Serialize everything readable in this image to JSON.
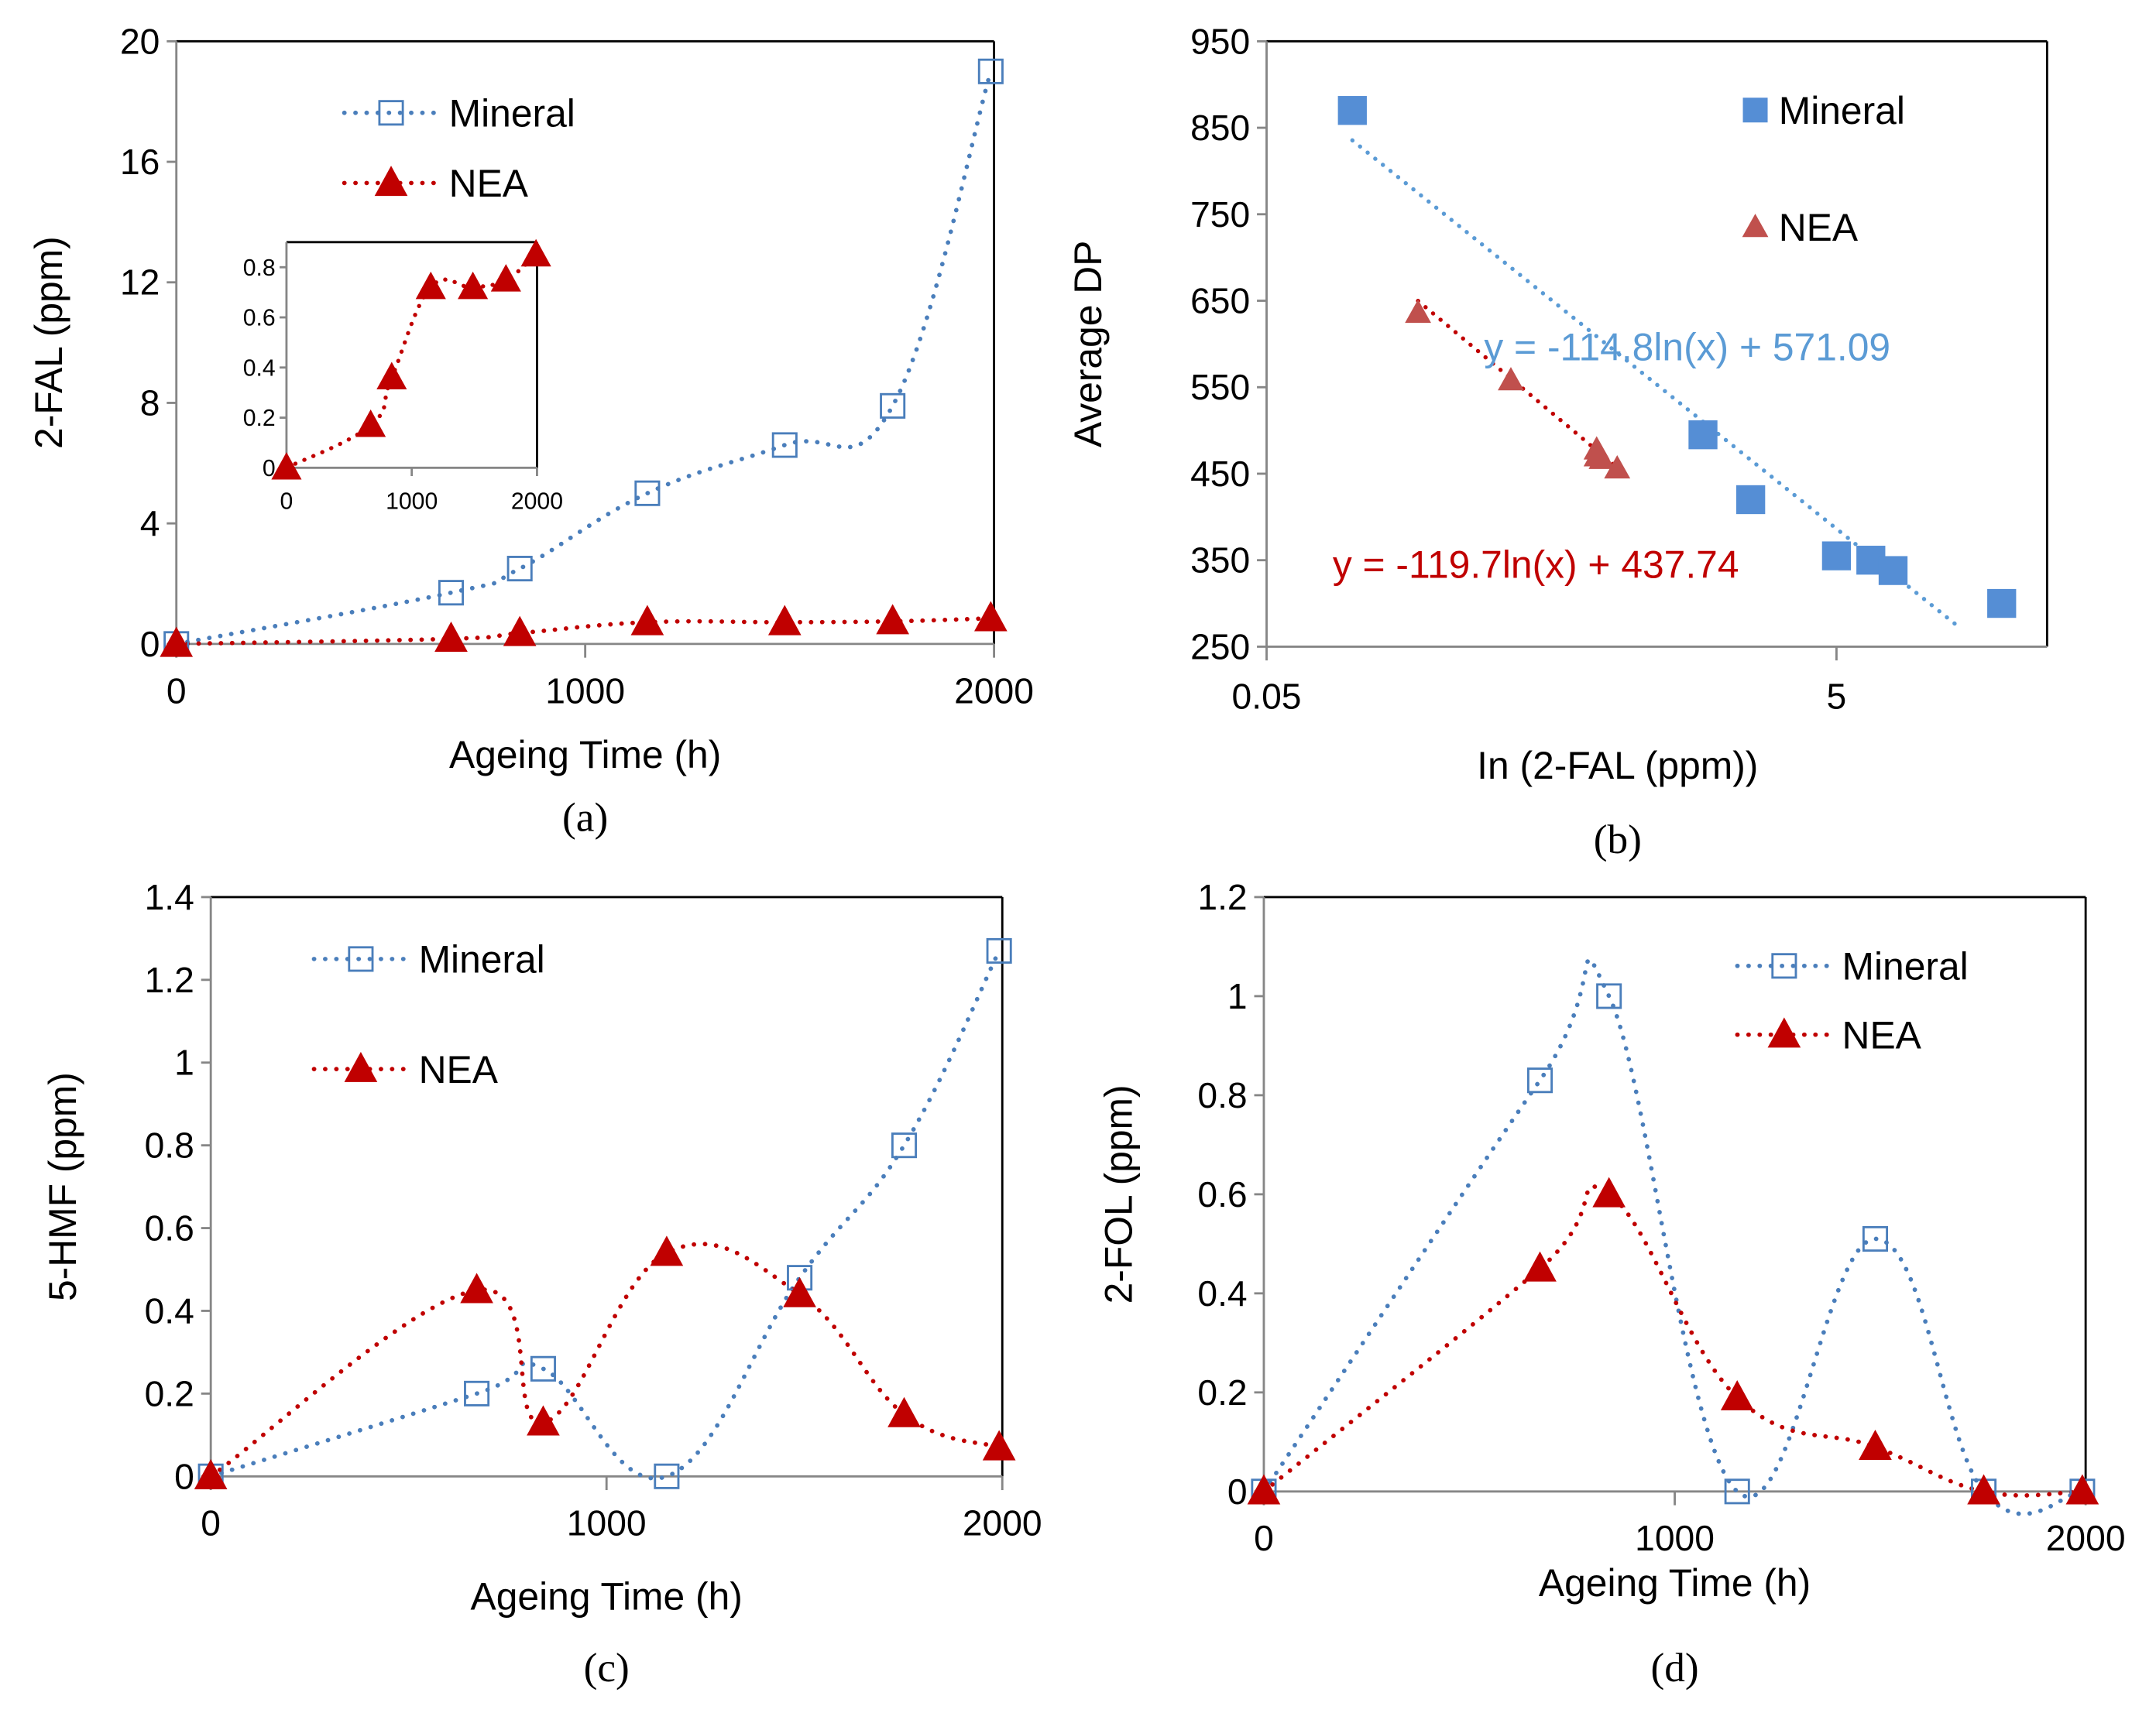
{
  "colors": {
    "mineral_line": "#4A7EBB",
    "nea_line": "#C00000",
    "mineral_scatter": "#558ED5",
    "nea_scatter": "#C0504D",
    "mineral_trend": "#5B9BD5",
    "nea_trend": "#C00000"
  },
  "chart_data": [
    {
      "id": "a",
      "type": "line",
      "panel_label": "(a)",
      "xlabel": "Ageing Time (h)",
      "ylabel": "2-FAL (ppm)",
      "xlim": [
        0,
        2000
      ],
      "ylim": [
        0,
        20
      ],
      "xticks": [
        0,
        1000,
        2000
      ],
      "xtick_labels": [
        "0",
        "1000",
        "2000"
      ],
      "yticks": [
        0,
        4,
        8,
        12,
        16,
        20
      ],
      "ytick_labels": [
        "0",
        "4",
        "8",
        "12",
        "16",
        "20"
      ],
      "legend": [
        "Mineral",
        "NEA"
      ],
      "legend_position": "top-left",
      "grid": false,
      "series": [
        {
          "name": "Mineral",
          "marker": "open-square",
          "line": "dotted-smooth",
          "x": [
            0,
            672,
            840,
            1152,
            1488,
            1752,
            1992
          ],
          "y": [
            0.0,
            1.7,
            2.5,
            5.0,
            6.6,
            7.9,
            19.0
          ]
        },
        {
          "name": "NEA",
          "marker": "filled-triangle",
          "line": "dotted-smooth",
          "x": [
            0,
            672,
            840,
            1152,
            1488,
            1752,
            1992
          ],
          "y": [
            0.0,
            0.17,
            0.36,
            0.72,
            0.72,
            0.75,
            0.85
          ]
        }
      ],
      "inset": {
        "type": "line",
        "xlim": [
          0,
          2000
        ],
        "ylim": [
          0,
          0.9
        ],
        "xticks": [
          0,
          1000,
          2000
        ],
        "xtick_labels": [
          "0",
          "1000",
          "2000"
        ],
        "yticks": [
          0,
          0.2,
          0.4,
          0.6,
          0.8
        ],
        "ytick_labels": [
          "0",
          "0.2",
          "0.4",
          "0.6",
          "0.8"
        ],
        "series": [
          {
            "name": "NEA",
            "marker": "filled-triangle",
            "x": [
              0,
              672,
              840,
              1152,
              1488,
              1752,
              1992
            ],
            "y": [
              0.0,
              0.17,
              0.36,
              0.72,
              0.72,
              0.75,
              0.85
            ]
          }
        ]
      }
    },
    {
      "id": "b",
      "type": "scatter",
      "panel_label": "(b)",
      "xlabel": "In (2-FAL (ppm))",
      "ylabel": "Average DP",
      "xscale": "log",
      "xlim": [
        0.05,
        30
      ],
      "ylim": [
        250,
        950
      ],
      "xticks": [
        0.05,
        5
      ],
      "xtick_labels": [
        "0.05",
        "5"
      ],
      "yticks": [
        250,
        350,
        450,
        550,
        650,
        750,
        850,
        950
      ],
      "ytick_labels": [
        "250",
        "350",
        "450",
        "550",
        "650",
        "750",
        "850",
        "950"
      ],
      "legend": [
        "Mineral",
        "NEA"
      ],
      "legend_position": "top-right",
      "grid": false,
      "series": [
        {
          "name": "Mineral",
          "marker": "filled-square",
          "x": [
            0.1,
            1.7,
            2.5,
            5.0,
            6.6,
            7.9,
            19.0
          ],
          "y": [
            870,
            495,
            420,
            355,
            350,
            338,
            300
          ],
          "trendline": {
            "equation": "y = -114.8ln(x) + 571.09",
            "a": -114.8,
            "b": 571.09,
            "x_range": [
              0.1,
              19.0
            ]
          }
        },
        {
          "name": "NEA",
          "marker": "filled-triangle",
          "x": [
            0.17,
            0.36,
            0.72,
            0.72,
            0.75,
            0.85
          ],
          "y": [
            636,
            558,
            478,
            470,
            467,
            456
          ],
          "trendline": {
            "equation": "y = -119.7ln(x) + 437.74",
            "a": -119.7,
            "b": 437.74,
            "x_range": [
              0.17,
              0.85
            ]
          }
        }
      ]
    },
    {
      "id": "c",
      "type": "line",
      "panel_label": "(c)",
      "xlabel": "Ageing Time (h)",
      "ylabel": "5-HMF (ppm)",
      "xlim": [
        0,
        2000
      ],
      "ylim": [
        0,
        1.4
      ],
      "xticks": [
        0,
        1000,
        2000
      ],
      "xtick_labels": [
        "0",
        "1000",
        "2000"
      ],
      "yticks": [
        0,
        0.2,
        0.4,
        0.6,
        0.8,
        1.0,
        1.2,
        1.4
      ],
      "ytick_labels": [
        "0",
        "0.2",
        "0.4",
        "0.6",
        "0.8",
        "1",
        "1.2",
        "1.4"
      ],
      "legend": [
        "Mineral",
        "NEA"
      ],
      "legend_position": "top-left",
      "grid": false,
      "series": [
        {
          "name": "Mineral",
          "marker": "open-square",
          "line": "dotted-smooth",
          "x": [
            0,
            672,
            840,
            1152,
            1488,
            1752,
            1992
          ],
          "y": [
            0.0,
            0.2,
            0.26,
            0.0,
            0.48,
            0.8,
            1.27
          ]
        },
        {
          "name": "NEA",
          "marker": "filled-triangle",
          "line": "dotted-smooth",
          "x": [
            0,
            672,
            840,
            1152,
            1488,
            1752,
            1992
          ],
          "y": [
            0.0,
            0.45,
            0.13,
            0.54,
            0.44,
            0.15,
            0.07
          ]
        }
      ]
    },
    {
      "id": "d",
      "type": "line",
      "panel_label": "(d)",
      "xlabel": "Ageing Time (h)",
      "ylabel": "2-FOL (ppm)",
      "xlim": [
        0,
        2000
      ],
      "ylim": [
        0,
        1.2
      ],
      "xticks": [
        0,
        1000,
        2000
      ],
      "xtick_labels": [
        "0",
        "1000",
        "2000"
      ],
      "yticks": [
        0,
        0.2,
        0.4,
        0.6,
        0.8,
        1.0,
        1.2
      ],
      "ytick_labels": [
        "0",
        "0.2",
        "0.4",
        "0.6",
        "0.8",
        "1",
        "1.2"
      ],
      "legend": [
        "Mineral",
        "NEA"
      ],
      "legend_position": "top-right",
      "grid": false,
      "series": [
        {
          "name": "Mineral",
          "marker": "open-square",
          "line": "dotted-smooth",
          "x": [
            0,
            672,
            840,
            1152,
            1488,
            1752,
            1992
          ],
          "y": [
            0.0,
            0.83,
            1.0,
            0.0,
            0.51,
            0.0,
            0.0
          ]
        },
        {
          "name": "NEA",
          "marker": "filled-triangle",
          "line": "dotted-smooth",
          "x": [
            0,
            672,
            840,
            1152,
            1488,
            1752,
            1992
          ],
          "y": [
            0.0,
            0.45,
            0.6,
            0.19,
            0.09,
            0.0,
            0.0
          ]
        }
      ]
    }
  ]
}
